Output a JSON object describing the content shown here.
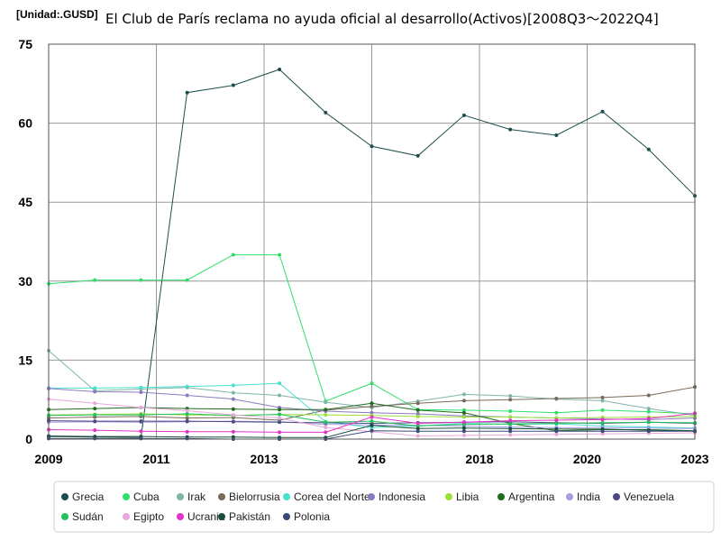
{
  "chart_data": {
    "type": "line",
    "unit_label": "[Unidad:.GUSD]",
    "title": "El Club de París reclama no ayuda oficial al desarrollo(Activos)[2008Q3～2022Q4]",
    "x_ticks": [
      "2009",
      "2011",
      "2013",
      "2016",
      "2018",
      "2020",
      "2023"
    ],
    "y_ticks": [
      "0",
      "15",
      "30",
      "45",
      "60",
      "75"
    ],
    "ylim": [
      0,
      75
    ],
    "x_count": 15,
    "series": [
      {
        "name": "Grecia",
        "color": "#1e4d4d",
        "values": [
          0.5,
          0.4,
          0.3,
          65.8,
          67.2,
          70.2,
          62.0,
          55.6,
          53.8,
          61.5,
          58.8,
          57.7,
          62.2,
          55.0,
          46.2
        ]
      },
      {
        "name": "Cuba",
        "color": "#2ee06a",
        "values": [
          29.5,
          30.2,
          30.2,
          30.2,
          35.0,
          35.0,
          7.2,
          10.6,
          5.6,
          5.5,
          5.3,
          5.0,
          5.5,
          5.2,
          4.8
        ]
      },
      {
        "name": "Irak",
        "color": "#7fb5a5",
        "values": [
          16.8,
          9.2,
          9.5,
          9.8,
          8.8,
          8.3,
          7.0,
          6.0,
          7.2,
          8.5,
          8.2,
          7.6,
          7.3,
          5.8,
          4.5
        ]
      },
      {
        "name": "Bielorrusia",
        "color": "#7a6a5a",
        "values": [
          4.0,
          4.2,
          4.3,
          4.0,
          4.1,
          3.6,
          5.5,
          6.2,
          6.8,
          7.3,
          7.5,
          7.7,
          7.9,
          8.3,
          9.9
        ]
      },
      {
        "name": "Corea del Norte",
        "color": "#47e0d0",
        "values": [
          9.7,
          9.7,
          9.8,
          10.0,
          10.2,
          10.6,
          3.3,
          2.2,
          2.5,
          3.0,
          2.8,
          2.9,
          2.5,
          2.3,
          2.1
        ]
      },
      {
        "name": "Indonesia",
        "color": "#8a7bc0",
        "values": [
          9.6,
          9.0,
          8.9,
          8.3,
          7.6,
          6.0,
          5.3,
          5.0,
          4.8,
          4.4,
          4.2,
          4.0,
          3.8,
          3.7,
          4.0
        ]
      },
      {
        "name": "Libia",
        "color": "#9adf3a",
        "values": [
          4.6,
          4.7,
          4.8,
          4.6,
          4.5,
          4.7,
          4.6,
          4.5,
          4.3,
          4.2,
          4.2,
          4.0,
          4.1,
          4.2,
          4.3
        ]
      },
      {
        "name": "Argentina",
        "color": "#1f6b1f",
        "values": [
          5.6,
          5.8,
          6.0,
          5.8,
          5.7,
          5.6,
          5.6,
          6.8,
          5.5,
          5.0,
          3.0,
          1.6,
          1.8,
          1.8,
          1.6
        ]
      },
      {
        "name": "India",
        "color": "#a79be0",
        "values": [
          3.2,
          3.3,
          3.2,
          3.3,
          3.4,
          3.3,
          2.8,
          2.7,
          2.6,
          2.5,
          2.3,
          2.2,
          2.2,
          2.1,
          2.0
        ]
      },
      {
        "name": "Venezuela",
        "color": "#4a4a80",
        "values": [
          3.5,
          3.4,
          3.4,
          3.4,
          3.3,
          3.2,
          3.1,
          3.0,
          3.1,
          3.2,
          3.3,
          3.1,
          3.0,
          3.2,
          3.0
        ]
      },
      {
        "name": "Sudán",
        "color": "#22c15a",
        "values": [
          4.5,
          4.6,
          4.6,
          4.8,
          4.5,
          4.7,
          3.2,
          3.4,
          2.5,
          2.8,
          2.9,
          3.0,
          3.1,
          3.2,
          3.1
        ]
      },
      {
        "name": "Egipto",
        "color": "#e8a8dc",
        "values": [
          7.6,
          6.8,
          6.0,
          5.4,
          4.6,
          4.0,
          2.2,
          1.4,
          0.6,
          0.7,
          0.8,
          0.9,
          1.0,
          1.1,
          1.2
        ]
      },
      {
        "name": "Ucrania",
        "color": "#e233c8",
        "values": [
          1.8,
          1.7,
          1.5,
          1.4,
          1.4,
          1.3,
          1.3,
          4.2,
          3.0,
          3.2,
          3.5,
          3.6,
          3.7,
          3.9,
          4.9
        ]
      },
      {
        "name": "Pakistán",
        "color": "#174f3a",
        "values": [
          0.6,
          0.5,
          0.5,
          0.4,
          0.4,
          0.3,
          0.3,
          2.6,
          2.0,
          2.1,
          2.0,
          1.9,
          1.9,
          1.7,
          1.5
        ]
      },
      {
        "name": "Polonia",
        "color": "#3a4a7a",
        "values": [
          0.1,
          0.1,
          0.1,
          0.1,
          0.0,
          0.0,
          0.0,
          1.6,
          1.5,
          1.5,
          1.5,
          1.5,
          1.5,
          1.5,
          1.5
        ]
      }
    ]
  }
}
